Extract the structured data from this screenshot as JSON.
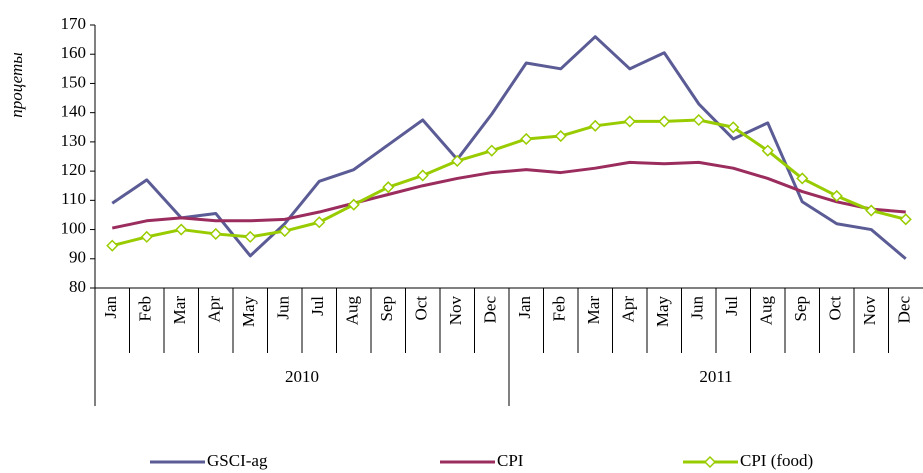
{
  "chart_data": {
    "type": "line",
    "y_label": "процеты",
    "categories": [
      "Jan",
      "Feb",
      "Mar",
      "Apr",
      "May",
      "Jun",
      "Jul",
      "Aug",
      "Sep",
      "Oct",
      "Nov",
      "Dec",
      "Jan",
      "Feb",
      "Mar",
      "Apr",
      "May",
      "Jun",
      "Jul",
      "Aug",
      "Sep",
      "Oct",
      "Nov",
      "Dec"
    ],
    "groups": [
      "2010",
      "2011"
    ],
    "ylim": [
      80,
      170
    ],
    "yticks": [
      80,
      90,
      100,
      110,
      120,
      130,
      140,
      150,
      160,
      170
    ],
    "series": [
      {
        "name": "GSCI-ag",
        "color": "#5b5b95",
        "marker": "none",
        "values": [
          109,
          117,
          104,
          105.5,
          91,
          102,
          116.5,
          120.5,
          129,
          137.5,
          124,
          139.5,
          157,
          155,
          166,
          155,
          160.5,
          143,
          131,
          136.5,
          109.5,
          102,
          100,
          90
        ]
      },
      {
        "name": "CPI",
        "color": "#9b2d5e",
        "marker": "none",
        "values": [
          100.5,
          103,
          104,
          103,
          103,
          103.5,
          106,
          109,
          112,
          115,
          117.5,
          119.5,
          120.5,
          119.5,
          121,
          123,
          122.5,
          123,
          121,
          117.5,
          113,
          109.5,
          107,
          106
        ]
      },
      {
        "name": "CPI (food)",
        "color": "#99cc00",
        "marker": "diamond",
        "values": [
          94.5,
          97.5,
          100,
          98.5,
          97.5,
          99.5,
          102.5,
          108.5,
          114.5,
          118.5,
          123.5,
          127,
          131,
          132,
          135.5,
          137,
          137,
          137.5,
          135,
          127,
          117.5,
          111.5,
          106.5,
          103.5
        ]
      }
    ]
  }
}
